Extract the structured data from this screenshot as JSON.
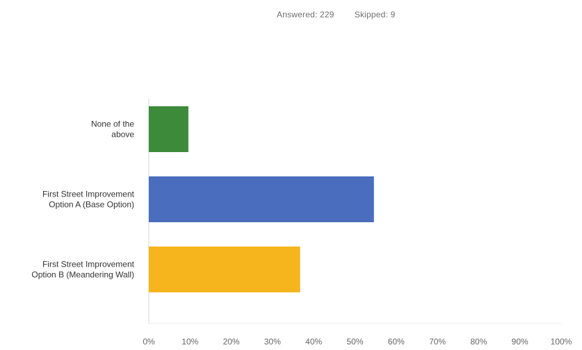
{
  "summary": {
    "answered_label": "Answered:",
    "answered_value": "229",
    "skipped_label": "Skipped:",
    "skipped_value": "9"
  },
  "chart_data": {
    "type": "bar",
    "orientation": "horizontal",
    "categories": [
      [
        "None of the",
        "above"
      ],
      [
        "First Street Improvement",
        "Option A (Base Option)"
      ],
      [
        "First Street Improvement",
        "Option B (Meandering Wall)"
      ]
    ],
    "values": [
      9.6,
      54.6,
      36.7
    ],
    "colors": [
      "#3d8a3a",
      "#4a6ebd",
      "#f6b51d"
    ],
    "xlim": [
      0,
      100
    ],
    "xticks": [
      0,
      10,
      20,
      30,
      40,
      50,
      60,
      70,
      80,
      90,
      100
    ],
    "xtick_labels": [
      "0%",
      "10%",
      "20%",
      "30%",
      "40%",
      "50%",
      "60%",
      "70%",
      "80%",
      "90%",
      "100%"
    ],
    "grid": false,
    "title": "",
    "xlabel": "",
    "ylabel": ""
  }
}
